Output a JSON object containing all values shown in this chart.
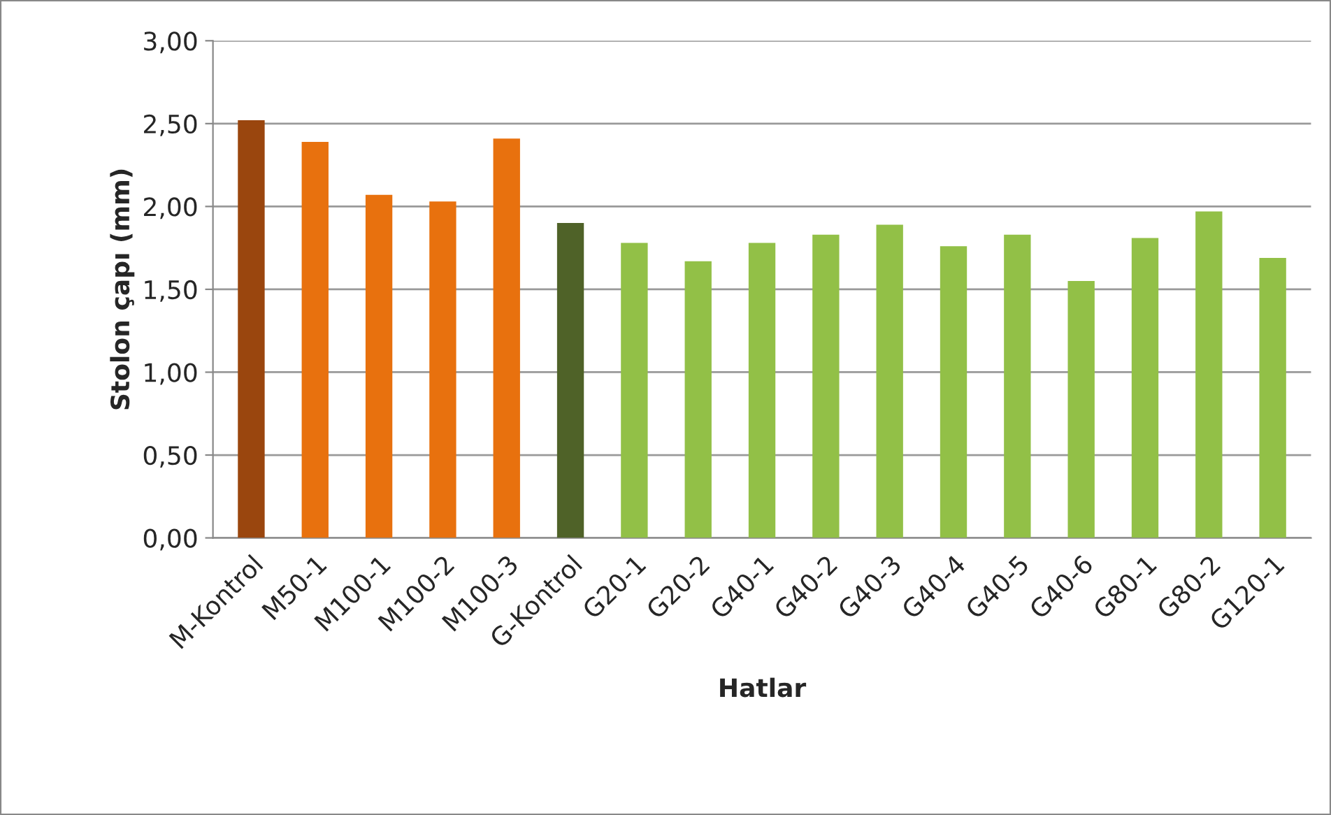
{
  "chart_data": {
    "type": "bar",
    "xlabel": "Hatlar",
    "ylabel": "Stolon çapı (mm)",
    "categories": [
      "M-Kontrol",
      "M50-1",
      "M100-1",
      "M100-2",
      "M100-3",
      "G-Kontrol",
      "G20-1",
      "G20-2",
      "G40-1",
      "G40-2",
      "G40-3",
      "G40-4",
      "G40-5",
      "G40-6",
      "G80-1",
      "G80-2",
      "G120-1"
    ],
    "values": [
      2.52,
      2.39,
      2.07,
      2.03,
      2.41,
      1.9,
      1.78,
      1.67,
      1.78,
      1.83,
      1.89,
      1.76,
      1.83,
      1.55,
      1.81,
      1.97,
      1.69
    ],
    "colors": [
      "#9a460e",
      "#e8710e",
      "#e8710e",
      "#e8710e",
      "#e8710e",
      "#4f6228",
      "#92c047",
      "#92c047",
      "#92c047",
      "#92c047",
      "#92c047",
      "#92c047",
      "#92c047",
      "#92c047",
      "#92c047",
      "#92c047",
      "#92c047"
    ],
    "ylim": [
      0,
      3
    ],
    "yticks": [
      {
        "value": 0,
        "label": "0,00"
      },
      {
        "value": 0.5,
        "label": "0,50"
      },
      {
        "value": 1,
        "label": "1,00"
      },
      {
        "value": 1.5,
        "label": "1,50"
      },
      {
        "value": 2,
        "label": "2,00"
      },
      {
        "value": 2.5,
        "label": "2,50"
      },
      {
        "value": 3,
        "label": "3,00"
      }
    ],
    "grid": "y",
    "legend": false
  }
}
